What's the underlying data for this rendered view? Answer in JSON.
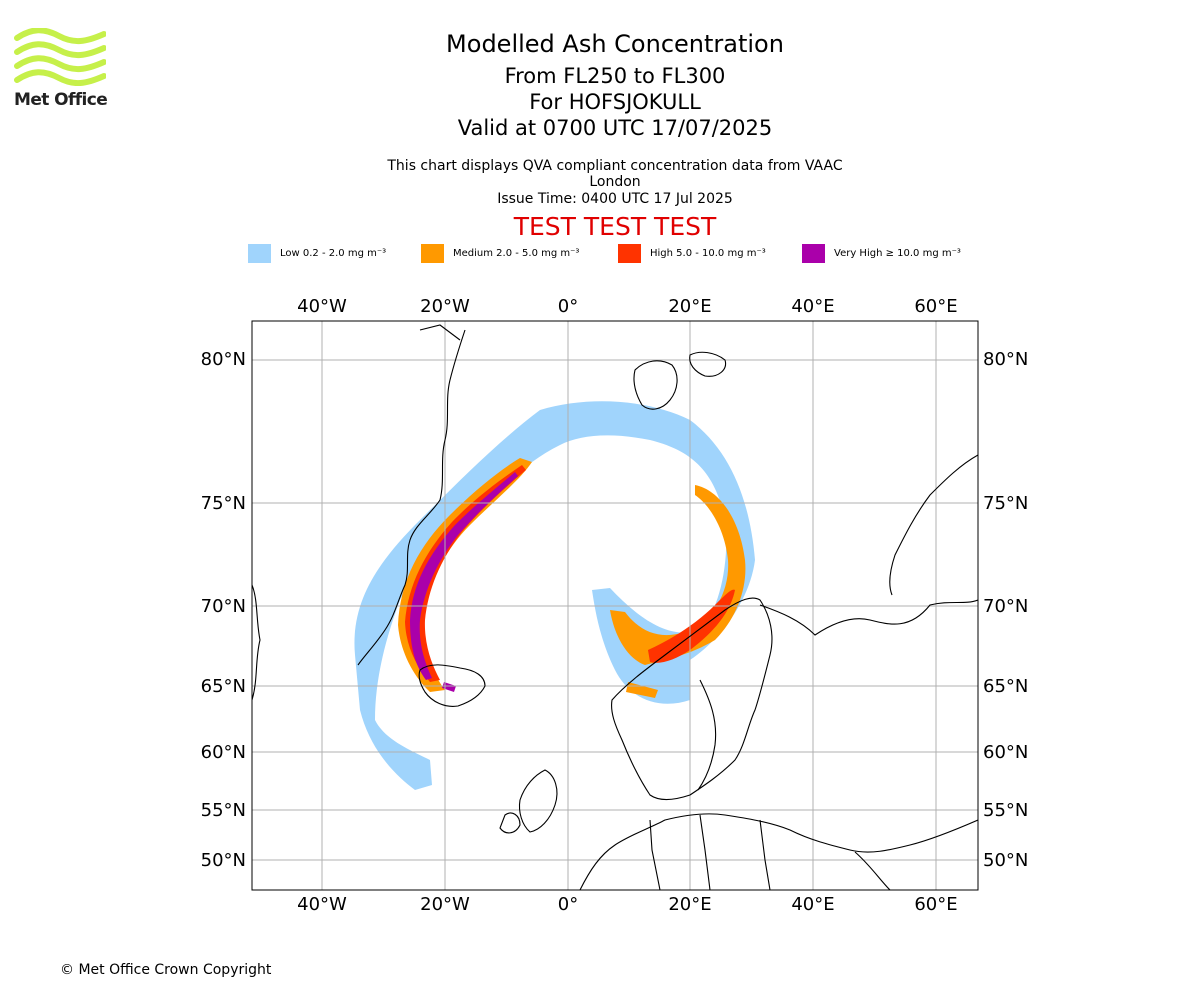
{
  "branding": {
    "logo_text": "Met Office",
    "logo_color": "#c6f04a"
  },
  "header": {
    "title": "Modelled Ash Concentration",
    "level_range": "From FL250 to FL300",
    "volcano": "For HOFSJOKULL",
    "valid_time": "Valid at 0700 UTC 17/07/2025",
    "description": "This chart displays QVA compliant concentration data from VAAC London",
    "issue_time": "Issue Time: 0400 UTC 17 Jul 2025",
    "test_banner": "TEST TEST TEST",
    "test_banner_color": "#e00000"
  },
  "legend": [
    {
      "label": "Low 0.2 - 2.0 mg m⁻³",
      "color": "#a0d4fc"
    },
    {
      "label": "Medium 2.0 - 5.0 mg m⁻³",
      "color": "#ff9900"
    },
    {
      "label": "High 5.0 - 10.0 mg m⁻³",
      "color": "#ff3300"
    },
    {
      "label": "Very High ≥ 10.0 mg m⁻³",
      "color": "#aa00aa"
    }
  ],
  "map": {
    "projection": "stereographic",
    "longitude_ticks": [
      "40°W",
      "20°W",
      "0°",
      "20°E",
      "40°E",
      "60°E"
    ],
    "latitude_ticks": [
      "80°N",
      "75°N",
      "70°N",
      "65°N",
      "60°N",
      "55°N",
      "50°N"
    ],
    "gridlines": true
  },
  "footer": {
    "copyright": "© Met Office Crown Copyright"
  }
}
